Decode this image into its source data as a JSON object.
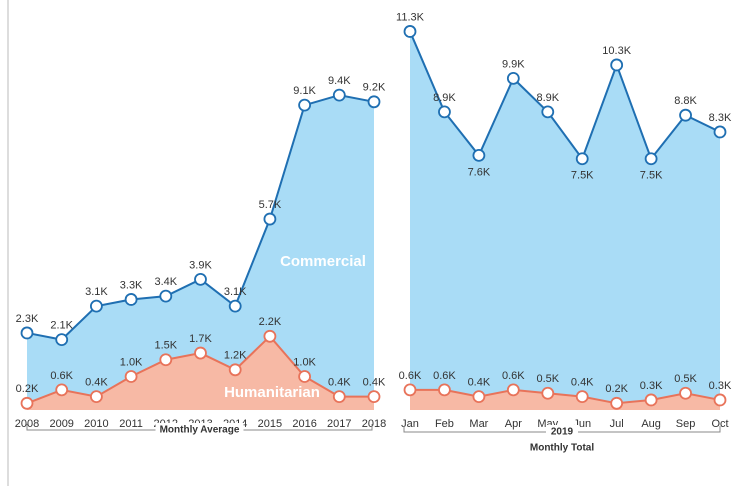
{
  "chart_data": [
    {
      "type": "area",
      "x_label": "Monthly Average",
      "categories": [
        "2008",
        "2009",
        "2010",
        "2011",
        "2012",
        "2013",
        "2014",
        "2015",
        "2016",
        "2017",
        "2018"
      ],
      "ylim": [
        0,
        12000
      ],
      "series": [
        {
          "name": "Commercial",
          "color": "#1f6fb2",
          "fill": "#a9dcf6",
          "values": [
            2300,
            2100,
            3100,
            3300,
            3400,
            3900,
            3100,
            5700,
            9100,
            9400,
            9200
          ],
          "value_labels": [
            "2.3K",
            "2.1K",
            "3.1K",
            "3.3K",
            "3.4K",
            "3.9K",
            "3.1K",
            "5.7K",
            "9.1K",
            "9.4K",
            "9.2K"
          ]
        },
        {
          "name": "Humanitarian",
          "color": "#e8735a",
          "fill": "#f7b9a5",
          "values": [
            200,
            600,
            400,
            1000,
            1500,
            1700,
            1200,
            2200,
            1000,
            400,
            400
          ],
          "value_labels": [
            "0.2K",
            "0.6K",
            "0.4K",
            "1.0K",
            "1.5K",
            "1.7K",
            "1.2K",
            "2.2K",
            "1.0K",
            "0.4K",
            "0.4K"
          ]
        }
      ]
    },
    {
      "type": "area",
      "x_group": "2019",
      "x_label": "Monthly Total",
      "categories": [
        "Jan",
        "Feb",
        "Mar",
        "Apr",
        "May",
        "Jun",
        "Jul",
        "Aug",
        "Sep",
        "Oct"
      ],
      "ylim": [
        0,
        12000
      ],
      "series": [
        {
          "color": "#1f6fb2",
          "fill": "#a9dcf6",
          "values": [
            11300,
            8900,
            7600,
            9900,
            8900,
            7500,
            10300,
            7500,
            8800,
            8300
          ],
          "value_labels": [
            "11.3K",
            "8.9K",
            "7.6K",
            "9.9K",
            "8.9K",
            "7.5K",
            "10.3K",
            "7.5K",
            "8.8K",
            "8.3K"
          ]
        },
        {
          "color": "#e8735a",
          "fill": "#f7b9a5",
          "values": [
            600,
            600,
            400,
            600,
            500,
            400,
            200,
            300,
            500,
            300
          ],
          "value_labels": [
            "0.6K",
            "0.6K",
            "0.4K",
            "0.6K",
            "0.5K",
            "0.4K",
            "0.2K",
            "0.3K",
            "0.5K",
            "0.3K"
          ]
        }
      ]
    }
  ]
}
